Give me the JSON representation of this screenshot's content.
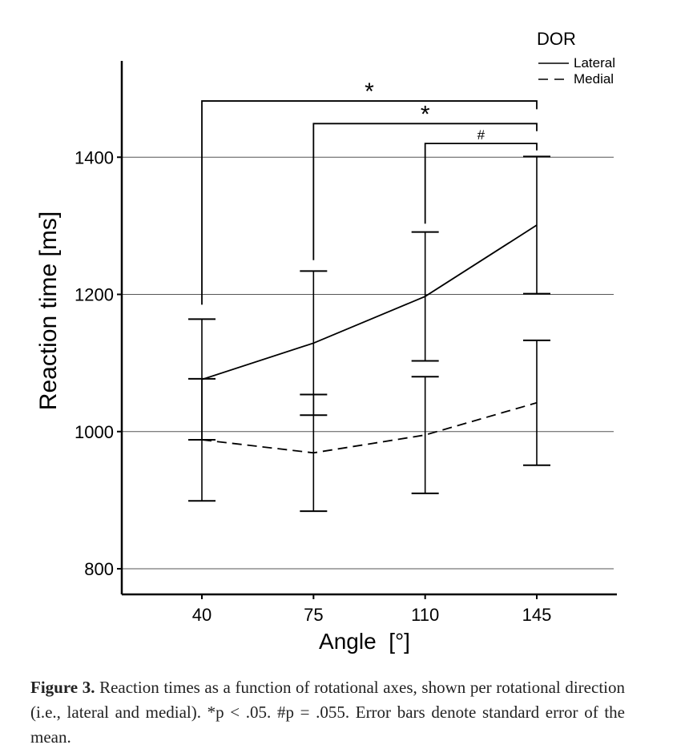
{
  "chart_data": {
    "type": "line",
    "xlabel": "Angle  [°]",
    "ylabel": "Reaction time [ms]",
    "x": [
      40,
      75,
      110,
      145
    ],
    "x_ticks": [
      "40",
      "75",
      "110",
      "145"
    ],
    "y_ticks": [
      800,
      1000,
      1200,
      1400
    ],
    "ylim": [
      750,
      1550
    ],
    "grid": "horizontal",
    "legend": {
      "title": "DOR",
      "placement": "top-right"
    },
    "series": [
      {
        "name": "Lateral",
        "style": "solid",
        "values": [
          1076,
          1129,
          1197,
          1301
        ],
        "error": [
          88,
          105,
          94,
          100
        ]
      },
      {
        "name": "Medial",
        "style": "dashed",
        "values": [
          988,
          969,
          995,
          1042
        ],
        "error": [
          89,
          85,
          85,
          91
        ]
      }
    ],
    "annotations": [
      {
        "label": "*",
        "from_x": 40,
        "to_x": 145,
        "bracket_y": 1482,
        "left_foot_y": 1185,
        "right_foot_y": 1470
      },
      {
        "label": "*",
        "from_x": 75,
        "to_x": 145,
        "bracket_y": 1449,
        "left_foot_y": 1250,
        "right_foot_y": 1438
      },
      {
        "label": "#",
        "from_x": 110,
        "to_x": 145,
        "bracket_y": 1420,
        "left_foot_y": 1303,
        "right_foot_y": 1410
      }
    ]
  },
  "caption": {
    "label": "Figure 3.",
    "text": " Reaction times as a function of rotational axes, shown per rotational direction (i.e., lateral and medial). *p < .05. #p = .055. Error bars denote standard error of the mean."
  }
}
